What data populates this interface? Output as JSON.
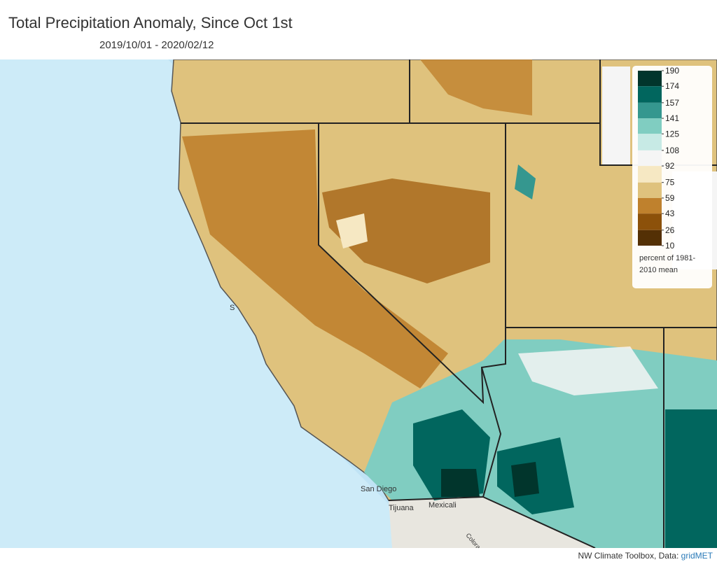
{
  "header": {
    "title": "Total Precipitation Anomaly, Since Oct 1st",
    "subtitle": "2019/10/01 - 2020/02/12"
  },
  "legend": {
    "ticks": [
      190,
      174,
      157,
      141,
      125,
      108,
      92,
      75,
      59,
      43,
      26,
      10
    ],
    "colors": [
      "#01352c",
      "#01665e",
      "#35978f",
      "#80cdc1",
      "#c7eae5",
      "#f5f5f5",
      "#f6e8c3",
      "#dfc27d",
      "#bf812d",
      "#8c510a",
      "#543005"
    ],
    "note": "percent of 1981-2010 mean"
  },
  "map": {
    "labels": [
      "San Diego",
      "Tijuana",
      "Mexicali",
      "Colorado",
      "S"
    ]
  },
  "footer": {
    "credit": "NW Climate Toolbox, Data:",
    "source": "gridMET"
  }
}
